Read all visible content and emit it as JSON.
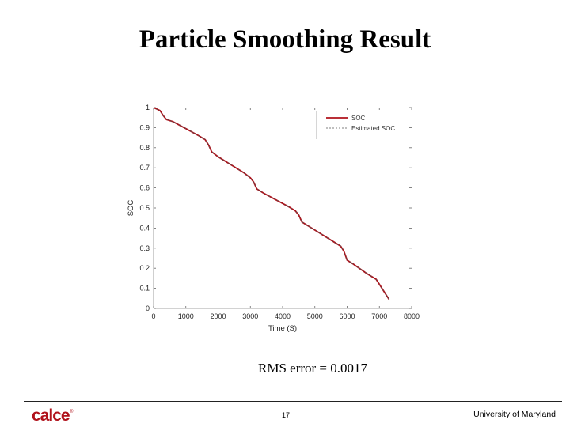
{
  "slide": {
    "title": "Particle Smoothing Result",
    "caption": "RMS error = 0.0017",
    "page_number": "17",
    "footer_org": "University of Maryland",
    "logo_text": "calce",
    "logo_mark": "®"
  },
  "colors": {
    "soc": "#b0121b",
    "estimated": "#555555",
    "logo": "#b0121b"
  },
  "chart_data": {
    "type": "line",
    "title": "",
    "xlabel": "Time (S)",
    "ylabel": "SOC",
    "xlim": [
      0,
      8000
    ],
    "ylim": [
      0,
      1
    ],
    "xticks": [
      0,
      1000,
      2000,
      3000,
      4000,
      5000,
      6000,
      7000,
      8000
    ],
    "xtick_labels": [
      "0",
      "1000",
      "2000",
      "3000",
      "4000",
      "5000",
      "6000",
      "7000",
      "8000"
    ],
    "yticks": [
      0,
      0.1,
      0.2,
      0.3,
      0.4,
      0.5,
      0.6,
      0.7,
      0.8,
      0.9,
      1
    ],
    "ytick_labels": [
      "0",
      "0.1",
      "0.2",
      "0.3",
      "0.4",
      "0.5",
      "0.6",
      "0.7",
      "0.8",
      "0.9",
      "1"
    ],
    "grid": false,
    "legend_position": "top-right",
    "series": [
      {
        "name": "SOC",
        "x": [
          0,
          200,
          300,
          400,
          600,
          1000,
          1400,
          1600,
          1700,
          1800,
          2000,
          2400,
          2800,
          3000,
          3100,
          3200,
          3400,
          3800,
          4200,
          4400,
          4500,
          4600,
          4800,
          5200,
          5600,
          5800,
          5900,
          6000,
          6200,
          6600,
          6900,
          7000,
          7100,
          7200,
          7300
        ],
        "y": [
          1.0,
          0.985,
          0.96,
          0.94,
          0.93,
          0.895,
          0.86,
          0.84,
          0.815,
          0.78,
          0.755,
          0.715,
          0.675,
          0.65,
          0.63,
          0.595,
          0.575,
          0.54,
          0.505,
          0.485,
          0.465,
          0.43,
          0.41,
          0.37,
          0.33,
          0.31,
          0.285,
          0.24,
          0.22,
          0.175,
          0.145,
          0.12,
          0.095,
          0.07,
          0.045
        ]
      },
      {
        "name": "Estimated SOC",
        "x": [
          0,
          200,
          300,
          400,
          600,
          1000,
          1400,
          1600,
          1700,
          1800,
          2000,
          2400,
          2800,
          3000,
          3100,
          3200,
          3400,
          3800,
          4200,
          4400,
          4500,
          4600,
          4800,
          5200,
          5600,
          5800,
          5900,
          6000,
          6200,
          6600,
          6900,
          7000,
          7100,
          7200,
          7300
        ],
        "y": [
          1.0,
          0.984,
          0.959,
          0.941,
          0.929,
          0.896,
          0.859,
          0.841,
          0.814,
          0.781,
          0.754,
          0.716,
          0.674,
          0.651,
          0.629,
          0.596,
          0.574,
          0.541,
          0.504,
          0.486,
          0.464,
          0.431,
          0.409,
          0.371,
          0.329,
          0.311,
          0.284,
          0.241,
          0.219,
          0.176,
          0.144,
          0.121,
          0.094,
          0.071,
          0.044
        ]
      }
    ]
  }
}
